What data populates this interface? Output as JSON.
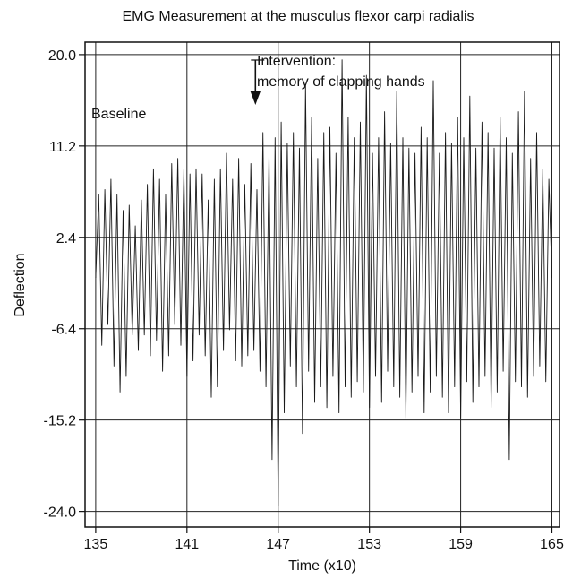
{
  "chart_data": {
    "type": "line",
    "title": "EMG Measurement at the musculus flexor carpi radialis",
    "xlabel": "Time (x10)",
    "ylabel": "Deflection",
    "xlim": [
      134.3,
      165.5
    ],
    "ylim": [
      -25.5,
      21.2
    ],
    "x_ticks": [
      135,
      141,
      147,
      153,
      159,
      165
    ],
    "y_ticks": [
      20.0,
      11.2,
      2.4,
      -6.4,
      -15.2,
      -24.0
    ],
    "x_tick_labels": [
      "135",
      "141",
      "147",
      "153",
      "159",
      "165"
    ],
    "y_tick_labels": [
      "20.0",
      "11.2",
      "2.4",
      "-6.4",
      "-15.2",
      "-24.0"
    ],
    "grid": true,
    "annotations": {
      "baseline": "Baseline",
      "intervention_line1": "Intervention:",
      "intervention_line2": "memory of clapping hands",
      "intervention_x": 145.5
    },
    "series": [
      {
        "values": [
          [
            135.0,
            -1.5
          ],
          [
            135.2,
            6.5
          ],
          [
            135.4,
            -8.0
          ],
          [
            135.6,
            7.0
          ],
          [
            135.8,
            -6.0
          ],
          [
            136.0,
            8.0
          ],
          [
            136.2,
            -10.0
          ],
          [
            136.4,
            6.5
          ],
          [
            136.6,
            -12.5
          ],
          [
            136.8,
            5.0
          ],
          [
            137.0,
            -11.0
          ],
          [
            137.2,
            5.5
          ],
          [
            137.4,
            -7.0
          ],
          [
            137.6,
            3.5
          ],
          [
            137.8,
            -8.5
          ],
          [
            138.0,
            6.0
          ],
          [
            138.2,
            -7.0
          ],
          [
            138.4,
            7.5
          ],
          [
            138.6,
            -9.0
          ],
          [
            138.8,
            9.0
          ],
          [
            139.0,
            -7.5
          ],
          [
            139.2,
            8.0
          ],
          [
            139.4,
            -10.5
          ],
          [
            139.6,
            6.5
          ],
          [
            139.8,
            -9.0
          ],
          [
            140.0,
            9.5
          ],
          [
            140.2,
            -6.0
          ],
          [
            140.4,
            10.0
          ],
          [
            140.6,
            -8.0
          ],
          [
            140.8,
            9.0
          ],
          [
            141.0,
            -11.0
          ],
          [
            141.2,
            8.5
          ],
          [
            141.4,
            -9.5
          ],
          [
            141.6,
            9.0
          ],
          [
            141.8,
            -7.0
          ],
          [
            142.0,
            8.5
          ],
          [
            142.2,
            -9.0
          ],
          [
            142.4,
            6.0
          ],
          [
            142.6,
            -13.0
          ],
          [
            142.8,
            8.0
          ],
          [
            143.0,
            -12.0
          ],
          [
            143.2,
            9.0
          ],
          [
            143.4,
            -8.5
          ],
          [
            143.6,
            10.5
          ],
          [
            143.8,
            -6.5
          ],
          [
            144.0,
            8.0
          ],
          [
            144.2,
            -9.5
          ],
          [
            144.4,
            10.0
          ],
          [
            144.6,
            -10.0
          ],
          [
            144.8,
            7.5
          ],
          [
            145.0,
            -9.0
          ],
          [
            145.2,
            9.5
          ],
          [
            145.4,
            -8.5
          ],
          [
            145.6,
            7.0
          ],
          [
            145.8,
            -10.5
          ],
          [
            146.0,
            12.5
          ],
          [
            146.2,
            -12.0
          ],
          [
            146.4,
            10.5
          ],
          [
            146.6,
            -19.0
          ],
          [
            146.8,
            12.0
          ],
          [
            147.0,
            -23.5
          ],
          [
            147.2,
            13.5
          ],
          [
            147.4,
            -14.5
          ],
          [
            147.6,
            11.5
          ],
          [
            147.8,
            -10.0
          ],
          [
            148.0,
            12.5
          ],
          [
            148.2,
            -12.0
          ],
          [
            148.4,
            11.0
          ],
          [
            148.6,
            -16.5
          ],
          [
            148.8,
            17.0
          ],
          [
            149.0,
            -10.5
          ],
          [
            149.2,
            14.0
          ],
          [
            149.4,
            -13.5
          ],
          [
            149.6,
            10.0
          ],
          [
            149.8,
            -12.0
          ],
          [
            150.0,
            12.5
          ],
          [
            150.2,
            -14.0
          ],
          [
            150.4,
            13.0
          ],
          [
            150.6,
            -11.0
          ],
          [
            150.8,
            10.5
          ],
          [
            151.0,
            -14.5
          ],
          [
            151.2,
            19.5
          ],
          [
            151.4,
            -12.0
          ],
          [
            151.6,
            14.0
          ],
          [
            151.8,
            -13.0
          ],
          [
            152.0,
            12.0
          ],
          [
            152.2,
            -11.5
          ],
          [
            152.4,
            13.5
          ],
          [
            152.6,
            -12.5
          ],
          [
            152.8,
            18.0
          ],
          [
            153.0,
            -14.0
          ],
          [
            153.2,
            10.5
          ],
          [
            153.4,
            -11.0
          ],
          [
            153.6,
            12.0
          ],
          [
            153.8,
            -13.5
          ],
          [
            154.0,
            14.5
          ],
          [
            154.2,
            -10.5
          ],
          [
            154.4,
            11.5
          ],
          [
            154.6,
            -12.0
          ],
          [
            154.8,
            16.5
          ],
          [
            155.0,
            -13.0
          ],
          [
            155.2,
            12.0
          ],
          [
            155.4,
            -15.0
          ],
          [
            155.6,
            11.0
          ],
          [
            155.8,
            -12.5
          ],
          [
            156.0,
            10.5
          ],
          [
            156.2,
            -11.0
          ],
          [
            156.4,
            13.0
          ],
          [
            156.6,
            -14.5
          ],
          [
            156.8,
            12.0
          ],
          [
            157.0,
            -12.5
          ],
          [
            157.2,
            17.5
          ],
          [
            157.4,
            -11.0
          ],
          [
            157.6,
            10.5
          ],
          [
            157.8,
            -13.0
          ],
          [
            158.0,
            12.5
          ],
          [
            158.2,
            -14.5
          ],
          [
            158.4,
            11.5
          ],
          [
            158.6,
            -12.0
          ],
          [
            158.8,
            14.0
          ],
          [
            159.0,
            -15.0
          ],
          [
            159.2,
            12.0
          ],
          [
            159.4,
            -11.5
          ],
          [
            159.6,
            16.0
          ],
          [
            159.8,
            -13.5
          ],
          [
            160.0,
            11.0
          ],
          [
            160.2,
            -12.0
          ],
          [
            160.4,
            13.5
          ],
          [
            160.6,
            -11.0
          ],
          [
            160.8,
            12.5
          ],
          [
            161.0,
            -14.0
          ],
          [
            161.2,
            11.0
          ],
          [
            161.4,
            -12.5
          ],
          [
            161.6,
            14.0
          ],
          [
            161.8,
            -10.5
          ],
          [
            162.0,
            12.0
          ],
          [
            162.2,
            -19.0
          ],
          [
            162.4,
            10.5
          ],
          [
            162.6,
            -11.5
          ],
          [
            162.8,
            14.5
          ],
          [
            163.0,
            -12.0
          ],
          [
            163.2,
            16.5
          ],
          [
            163.4,
            -13.0
          ],
          [
            163.6,
            10.0
          ],
          [
            163.8,
            -11.0
          ],
          [
            164.0,
            12.5
          ],
          [
            164.2,
            -10.0
          ],
          [
            164.4,
            9.0
          ],
          [
            164.6,
            -11.5
          ],
          [
            164.8,
            8.0
          ],
          [
            165.0,
            -1.5
          ]
        ]
      }
    ]
  }
}
